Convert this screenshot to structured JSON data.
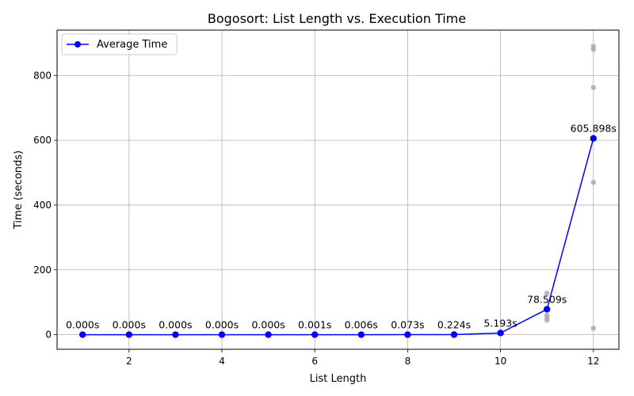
{
  "chart_data": {
    "type": "line",
    "title": "Bogosort: List Length vs. Execution Time",
    "xlabel": "List Length",
    "ylabel": "Time (seconds)",
    "xlim": [
      0.45,
      12.55
    ],
    "ylim": [
      -45,
      940
    ],
    "xticks": [
      2,
      4,
      6,
      8,
      10,
      12
    ],
    "yticks": [
      0,
      200,
      400,
      600,
      800
    ],
    "grid": true,
    "legend_position": "top-left",
    "series": [
      {
        "name": "Average Time",
        "color": "#0000ff",
        "marker": "circle",
        "x": [
          1,
          2,
          3,
          4,
          5,
          6,
          7,
          8,
          9,
          10,
          11,
          12
        ],
        "y": [
          0.0,
          0.0,
          0.0,
          0.0,
          0.0,
          0.001,
          0.006,
          0.073,
          0.224,
          5.193,
          78.509,
          605.898
        ]
      }
    ],
    "data_labels": [
      "0.000s",
      "0.000s",
      "0.000s",
      "0.000s",
      "0.000s",
      "0.001s",
      "0.006s",
      "0.073s",
      "0.224s",
      "5.193s",
      "78.509s",
      "605.898s"
    ],
    "individual_runs": {
      "color": "#a9a9a9",
      "points": [
        {
          "x": 1,
          "y": 0
        },
        {
          "x": 2,
          "y": 0
        },
        {
          "x": 3,
          "y": 0
        },
        {
          "x": 4,
          "y": 0
        },
        {
          "x": 5,
          "y": 0
        },
        {
          "x": 6,
          "y": 0
        },
        {
          "x": 7,
          "y": 0
        },
        {
          "x": 8,
          "y": 0
        },
        {
          "x": 9,
          "y": 0
        },
        {
          "x": 10,
          "y": 3
        },
        {
          "x": 10,
          "y": 8
        },
        {
          "x": 11,
          "y": 45
        },
        {
          "x": 11,
          "y": 52
        },
        {
          "x": 11,
          "y": 60
        },
        {
          "x": 11,
          "y": 128
        },
        {
          "x": 12,
          "y": 20
        },
        {
          "x": 12,
          "y": 470
        },
        {
          "x": 12,
          "y": 763
        },
        {
          "x": 12,
          "y": 880
        },
        {
          "x": 12,
          "y": 890
        }
      ]
    }
  }
}
